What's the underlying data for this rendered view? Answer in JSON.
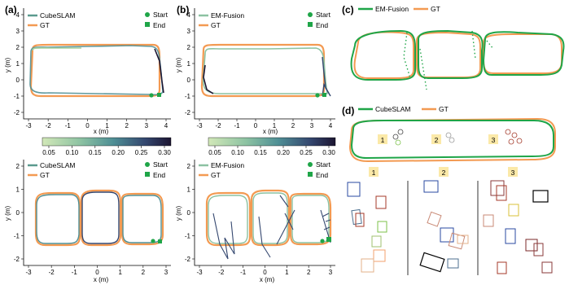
{
  "colors": {
    "gt": "#f39a52",
    "cube": "#5b9a8e",
    "emf": "#1fa548",
    "marker": "#1fa548",
    "color_low": "#b7d9a4",
    "color_high": "#1c1531",
    "rect_colors": [
      "#2a4aa0",
      "#a43a2a",
      "#7cc24a",
      "#f3a06e",
      "#c98a76",
      "#4c6f8f",
      "#d9c23a",
      "#000000",
      "#7b2a2a",
      "#e3b08a",
      "#8a3a3a",
      "#9fc26f"
    ]
  },
  "labels": {
    "a": "(a)",
    "b": "(b)",
    "c": "(c)",
    "d": "(d)",
    "cubeslam": "CubeSLAM",
    "gt": "GT",
    "emfusion": "EM-Fusion",
    "start": "Start",
    "end": "End",
    "xlabel": "x (m)",
    "ylabel": "y (m)",
    "seg1": "1",
    "seg2": "2",
    "seg3": "3"
  },
  "colorbar": {
    "ticks": [
      "0.05",
      "0.10",
      "0.15",
      "0.20",
      "0.25",
      "0.30"
    ]
  },
  "chart_data": [
    {
      "panel": "a-top",
      "type": "line",
      "series": [
        {
          "name": "CubeSLAM"
        },
        {
          "name": "GT"
        }
      ],
      "xlabel": "x (m)",
      "ylabel": "y (m)",
      "xlim": [
        -3,
        4
      ],
      "ylim": [
        -2,
        4
      ],
      "xticks": [
        -3,
        -2,
        -1,
        0,
        1,
        2,
        3,
        4
      ],
      "yticks": [
        -2,
        -1,
        0,
        1,
        2,
        3,
        4
      ],
      "colorbar_range": [
        0.05,
        0.3
      ],
      "markers": [
        "Start",
        "End"
      ]
    },
    {
      "panel": "b-top",
      "type": "line",
      "series": [
        {
          "name": "EM-Fusion"
        },
        {
          "name": "GT"
        }
      ],
      "xlabel": "x (m)",
      "ylabel": "y (m)",
      "xlim": [
        -3,
        4
      ],
      "ylim": [
        -2,
        4
      ],
      "xticks": [
        -3,
        -2,
        -1,
        0,
        1,
        2,
        3,
        4
      ],
      "yticks": [
        -2,
        -1,
        0,
        1,
        2,
        3,
        4
      ],
      "colorbar_range": [
        0.05,
        0.3
      ],
      "markers": [
        "Start",
        "End"
      ]
    },
    {
      "panel": "a-bottom",
      "type": "line",
      "series": [
        {
          "name": "CubeSLAM"
        },
        {
          "name": "GT"
        }
      ],
      "xlabel": "x (m)",
      "ylabel": "y (m)",
      "xlim": [
        -3.5,
        3.5
      ],
      "ylim": [
        -2,
        2
      ],
      "xticks": [
        -3,
        -2,
        -1,
        0,
        1,
        2,
        3
      ],
      "yticks": [
        -2,
        -1,
        0,
        1,
        2
      ],
      "markers": [
        "Start",
        "End"
      ]
    },
    {
      "panel": "b-bottom",
      "type": "line",
      "series": [
        {
          "name": "EM-Fusion"
        },
        {
          "name": "GT"
        }
      ],
      "xlabel": "x (m)",
      "ylabel": "y (m)",
      "xlim": [
        -3.5,
        3.5
      ],
      "ylim": [
        -2,
        2
      ],
      "xticks": [
        -3,
        -2,
        -1,
        0,
        1,
        2,
        3
      ],
      "yticks": [
        -2,
        -1,
        0,
        1,
        2
      ],
      "markers": [
        "Start",
        "End"
      ]
    },
    {
      "panel": "c",
      "type": "line",
      "series": [
        {
          "name": "EM-Fusion"
        },
        {
          "name": "GT"
        }
      ]
    },
    {
      "panel": "d",
      "type": "line",
      "series": [
        {
          "name": "CubeSLAM"
        },
        {
          "name": "GT"
        }
      ],
      "segments": [
        "1",
        "2",
        "3"
      ]
    }
  ]
}
